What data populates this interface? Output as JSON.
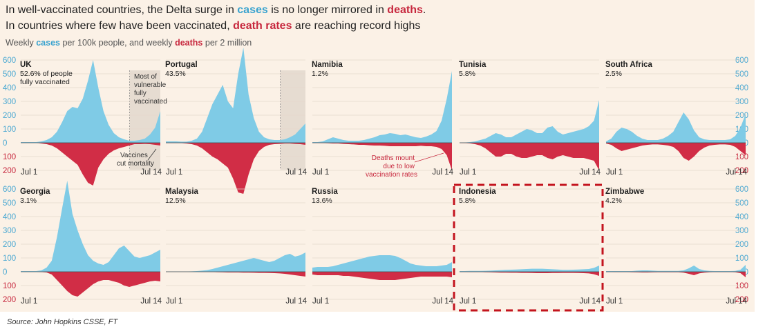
{
  "title": {
    "line1_a": "In well-vaccinated countries, the Delta surge in ",
    "line1_b": "cases",
    "line1_c": " is no longer mirrored in ",
    "line1_d": "deaths",
    "line1_e": ".",
    "line2_a": "In countries where few have been vaccinated, ",
    "line2_b": "death rates",
    "line2_c": " are reaching record highs"
  },
  "subtitle": {
    "a": "Weekly ",
    "b": "cases",
    "c": " per 100k people, and weekly ",
    "d": "deaths",
    "e": " per 2 million"
  },
  "source": "Source: John Hopkins CSSE, FT",
  "colors": {
    "cases": "#7fcbe6",
    "deaths": "#d12d46",
    "highlight": "#c3141e",
    "background": "#fbf1e6",
    "shade": "#e6dcd1"
  },
  "chart_data": {
    "type": "area",
    "x_tick_labels": [
      "Jul 1",
      "Jul 14"
    ],
    "y_ticks_up": [
      "0",
      "100",
      "200",
      "300",
      "400",
      "500",
      "600"
    ],
    "y_ticks_down": [
      "100",
      "200"
    ],
    "annotations": {
      "uk_shade": "Most of vulnerable fully vaccinated",
      "uk_mortality": "Vaccines cut mortality",
      "namibia": "Deaths mount due to low vaccination rates"
    },
    "highlighted_panel": "Indonesia",
    "panels": [
      {
        "name": "UK",
        "vacc": "52.6% of people fully vaccinated",
        "shade_from": 0.78,
        "cases": [
          5,
          5,
          5,
          5,
          10,
          20,
          40,
          80,
          150,
          230,
          260,
          250,
          320,
          450,
          600,
          400,
          230,
          130,
          70,
          40,
          25,
          15,
          15,
          20,
          30,
          60,
          110,
          230
        ],
        "deaths": [
          0,
          0,
          0,
          0,
          5,
          10,
          20,
          40,
          70,
          100,
          130,
          160,
          230,
          290,
          310,
          180,
          120,
          80,
          55,
          40,
          30,
          20,
          10,
          10,
          8,
          10,
          15,
          20
        ]
      },
      {
        "name": "Portugal",
        "vacc": "43.5%",
        "shade_from": 0.82,
        "cases": [
          10,
          10,
          10,
          8,
          8,
          15,
          30,
          80,
          180,
          280,
          350,
          420,
          300,
          250,
          500,
          690,
          350,
          180,
          80,
          40,
          25,
          20,
          20,
          25,
          40,
          60,
          100,
          140
        ],
        "deaths": [
          2,
          2,
          2,
          2,
          5,
          10,
          20,
          40,
          70,
          100,
          120,
          150,
          180,
          260,
          360,
          370,
          230,
          120,
          60,
          30,
          15,
          10,
          8,
          5,
          5,
          8,
          10,
          15
        ]
      },
      {
        "name": "Namibia",
        "vacc": "1.2%",
        "cases": [
          5,
          5,
          10,
          25,
          40,
          30,
          20,
          15,
          15,
          15,
          20,
          30,
          40,
          55,
          60,
          70,
          65,
          55,
          60,
          50,
          40,
          35,
          45,
          60,
          85,
          160,
          320,
          520
        ],
        "deaths": [
          1,
          1,
          2,
          3,
          5,
          5,
          8,
          10,
          12,
          15,
          15,
          18,
          20,
          20,
          22,
          25,
          25,
          25,
          25,
          25,
          25,
          22,
          25,
          25,
          30,
          45,
          90,
          200
        ]
      },
      {
        "name": "Tunisia",
        "vacc": "5.8%",
        "cases": [
          2,
          2,
          5,
          10,
          20,
          30,
          50,
          70,
          60,
          40,
          40,
          60,
          80,
          100,
          90,
          70,
          70,
          110,
          120,
          80,
          60,
          70,
          80,
          90,
          100,
          120,
          160,
          310
        ],
        "deaths": [
          1,
          2,
          4,
          10,
          20,
          40,
          70,
          100,
          100,
          80,
          80,
          100,
          110,
          110,
          100,
          90,
          90,
          110,
          120,
          100,
          90,
          100,
          110,
          110,
          110,
          120,
          130,
          200
        ]
      },
      {
        "name": "South Africa",
        "vacc": "2.5%",
        "cases": [
          10,
          30,
          80,
          110,
          100,
          80,
          50,
          30,
          20,
          20,
          20,
          30,
          50,
          80,
          150,
          220,
          170,
          90,
          40,
          25,
          20,
          20,
          20,
          20,
          25,
          50,
          110,
          210
        ],
        "deaths": [
          5,
          15,
          40,
          60,
          50,
          40,
          30,
          20,
          15,
          12,
          12,
          15,
          20,
          30,
          60,
          110,
          130,
          100,
          60,
          35,
          20,
          15,
          12,
          12,
          15,
          30,
          60,
          90
        ]
      },
      {
        "name": "Georgia",
        "vacc": "3.1%",
        "cases": [
          5,
          5,
          5,
          5,
          10,
          30,
          80,
          250,
          460,
          660,
          420,
          300,
          200,
          120,
          80,
          60,
          50,
          70,
          120,
          170,
          190,
          150,
          110,
          100,
          110,
          120,
          140,
          160
        ],
        "deaths": [
          0,
          0,
          0,
          0,
          2,
          5,
          20,
          60,
          100,
          140,
          170,
          180,
          150,
          120,
          90,
          70,
          60,
          60,
          70,
          80,
          100,
          110,
          100,
          90,
          80,
          70,
          65,
          70
        ]
      },
      {
        "name": "Malaysia",
        "vacc": "12.5%",
        "cases": [
          2,
          2,
          2,
          2,
          2,
          3,
          5,
          8,
          12,
          20,
          30,
          40,
          50,
          60,
          70,
          80,
          90,
          100,
          90,
          80,
          70,
          80,
          100,
          120,
          130,
          110,
          120,
          140
        ],
        "deaths": [
          0,
          0,
          0,
          0,
          0,
          0,
          0,
          1,
          1,
          2,
          3,
          4,
          5,
          5,
          5,
          6,
          6,
          7,
          8,
          8,
          9,
          10,
          12,
          15,
          20,
          25,
          30,
          35
        ]
      },
      {
        "name": "Russia",
        "vacc": "13.6%",
        "cases": [
          30,
          35,
          35,
          35,
          40,
          50,
          60,
          70,
          80,
          90,
          100,
          110,
          115,
          120,
          120,
          120,
          115,
          100,
          80,
          60,
          50,
          45,
          40,
          40,
          40,
          45,
          50,
          70
        ],
        "deaths": [
          20,
          25,
          25,
          25,
          25,
          25,
          30,
          30,
          35,
          40,
          45,
          50,
          55,
          60,
          60,
          60,
          60,
          55,
          50,
          45,
          40,
          35,
          35,
          35,
          35,
          35,
          35,
          40
        ]
      },
      {
        "name": "Indonesia",
        "vacc": "5.8%",
        "cases": [
          5,
          5,
          6,
          6,
          6,
          7,
          8,
          10,
          12,
          14,
          15,
          16,
          18,
          20,
          22,
          22,
          22,
          20,
          18,
          16,
          14,
          14,
          15,
          16,
          18,
          20,
          28,
          45
        ],
        "deaths": [
          1,
          1,
          2,
          2,
          2,
          3,
          4,
          5,
          6,
          6,
          7,
          7,
          8,
          8,
          9,
          10,
          10,
          10,
          9,
          9,
          8,
          8,
          8,
          9,
          10,
          12,
          18,
          30
        ]
      },
      {
        "name": "Zimbabwe",
        "vacc": "4.2%",
        "cases": [
          5,
          5,
          5,
          5,
          5,
          5,
          8,
          10,
          10,
          8,
          6,
          6,
          6,
          6,
          6,
          10,
          25,
          45,
          20,
          10,
          6,
          5,
          5,
          5,
          5,
          6,
          15,
          50
        ],
        "deaths": [
          1,
          1,
          2,
          2,
          2,
          3,
          4,
          5,
          5,
          4,
          3,
          3,
          3,
          3,
          3,
          6,
          15,
          25,
          12,
          6,
          3,
          2,
          2,
          2,
          2,
          3,
          10,
          40
        ]
      }
    ]
  }
}
